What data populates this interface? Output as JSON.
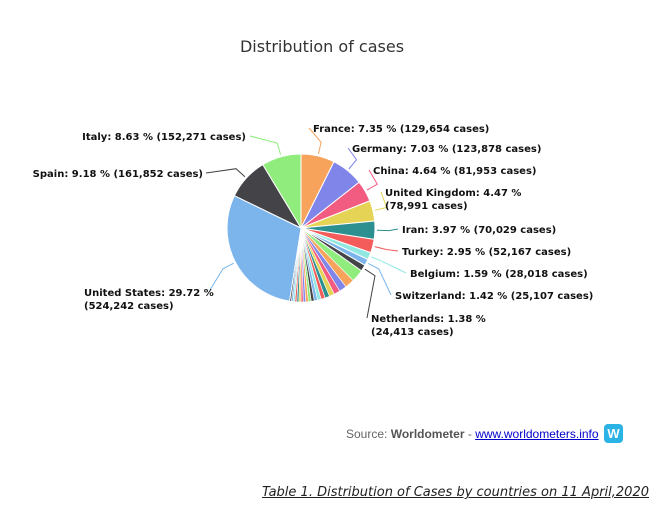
{
  "chart_data": {
    "type": "pie",
    "title": "Distribution of cases",
    "series": [
      {
        "name": "United States",
        "percent": 29.72,
        "cases": 524242,
        "label": "United States: 29.72 % (524,242 cases)",
        "color": "#7cb5ec"
      },
      {
        "name": "Spain",
        "percent": 9.18,
        "cases": 161852,
        "label": "Spain: 9.18 % (161,852 cases)",
        "color": "#434348"
      },
      {
        "name": "Italy",
        "percent": 8.63,
        "cases": 152271,
        "label": "Italy: 8.63 % (152,271 cases)",
        "color": "#90ed7d"
      },
      {
        "name": "France",
        "percent": 7.35,
        "cases": 129654,
        "label": "France: 7.35 % (129,654 cases)",
        "color": "#f7a35c"
      },
      {
        "name": "Germany",
        "percent": 7.03,
        "cases": 123878,
        "label": "Germany: 7.03 % (123,878 cases)",
        "color": "#8085e9"
      },
      {
        "name": "China",
        "percent": 4.64,
        "cases": 81953,
        "label": "China: 4.64 % (81,953 cases)",
        "color": "#f15c80"
      },
      {
        "name": "United Kingdom",
        "percent": 4.47,
        "cases": 78991,
        "label": "United Kingdom: 4.47 % (78,991 cases)",
        "color": "#e4d354"
      },
      {
        "name": "Iran",
        "percent": 3.97,
        "cases": 70029,
        "label": "Iran: 3.97 % (70,029 cases)",
        "color": "#2b908f"
      },
      {
        "name": "Turkey",
        "percent": 2.95,
        "cases": 52167,
        "label": "Turkey: 2.95 % (52,167 cases)",
        "color": "#f45b5b"
      },
      {
        "name": "Belgium",
        "percent": 1.59,
        "cases": 28018,
        "label": "Belgium: 1.59 % (28,018 cases)",
        "color": "#91e8e1"
      },
      {
        "name": "Switzerland",
        "percent": 1.42,
        "cases": 25107,
        "label": "Switzerland: 1.42 % (25,107 cases)",
        "color": "#7cb5ec"
      },
      {
        "name": "Netherlands",
        "percent": 1.38,
        "cases": 24413,
        "label": "Netherlands: 1.38 % (24,413 cases)",
        "color": "#434348"
      }
    ],
    "other_slice_colors": [
      "#90ed7d",
      "#f7a35c",
      "#8085e9",
      "#f15c80",
      "#e4d354",
      "#2b908f",
      "#f45b5b",
      "#91e8e1",
      "#7cb5ec",
      "#434348"
    ]
  },
  "source": {
    "prefix": "Source:",
    "name": "Worldometer",
    "separator": "-",
    "url_text": "www.worldometers.info",
    "logo_letter": "W"
  },
  "caption": "Table 1. Distribution of Cases by countries on 11 April,2020"
}
